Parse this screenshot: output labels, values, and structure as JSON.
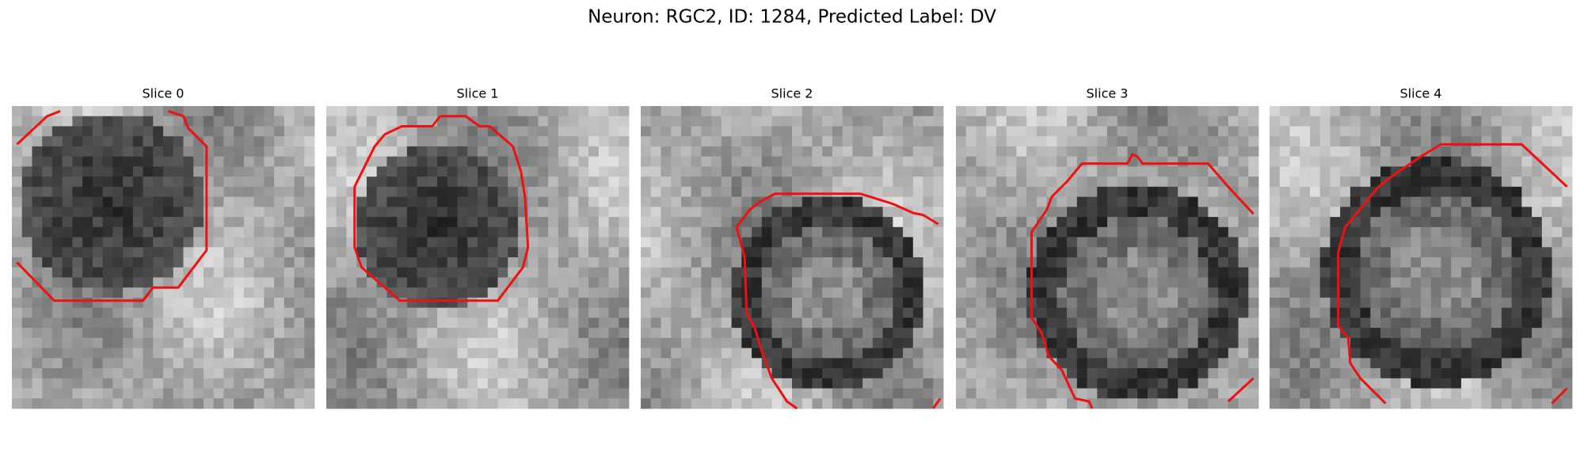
{
  "title": "Neuron: RGC2, ID: 1284, Predicted Label: DV",
  "panels": [
    {
      "title": "Slice 0"
    },
    {
      "title": "Slice 1"
    },
    {
      "title": "Slice 2"
    },
    {
      "title": "Slice 3"
    },
    {
      "title": "Slice 4"
    }
  ]
}
